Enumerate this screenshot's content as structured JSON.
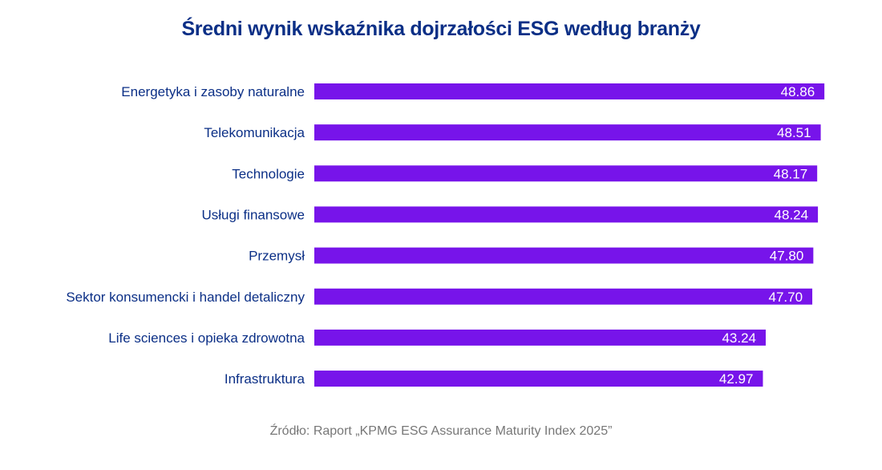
{
  "chart_data": {
    "type": "bar",
    "orientation": "horizontal",
    "title": "Średni wynik wskaźnika dojrzałości ESG według branży",
    "categories": [
      "Energetyka i zasoby naturalne",
      "Telekomunikacja",
      "Technologie",
      "Usługi finansowe",
      "Przemysł",
      "Sektor konsumencki i handel detaliczny",
      "Life sciences i opieka zdrowotna",
      "Infrastruktura"
    ],
    "values": [
      48.86,
      48.51,
      48.17,
      48.24,
      47.8,
      47.7,
      43.24,
      42.97
    ],
    "value_labels": [
      "48.86",
      "48.51",
      "48.17",
      "48.24",
      "47.80",
      "47.70",
      "43.24",
      "42.97"
    ],
    "xlim": [
      0,
      50
    ],
    "grid": false,
    "bar_color": "#7714ea",
    "text_color": "#0b2f86"
  },
  "source": "Źródło: Raport „KPMG ESG Assurance Maturity Index 2025”"
}
